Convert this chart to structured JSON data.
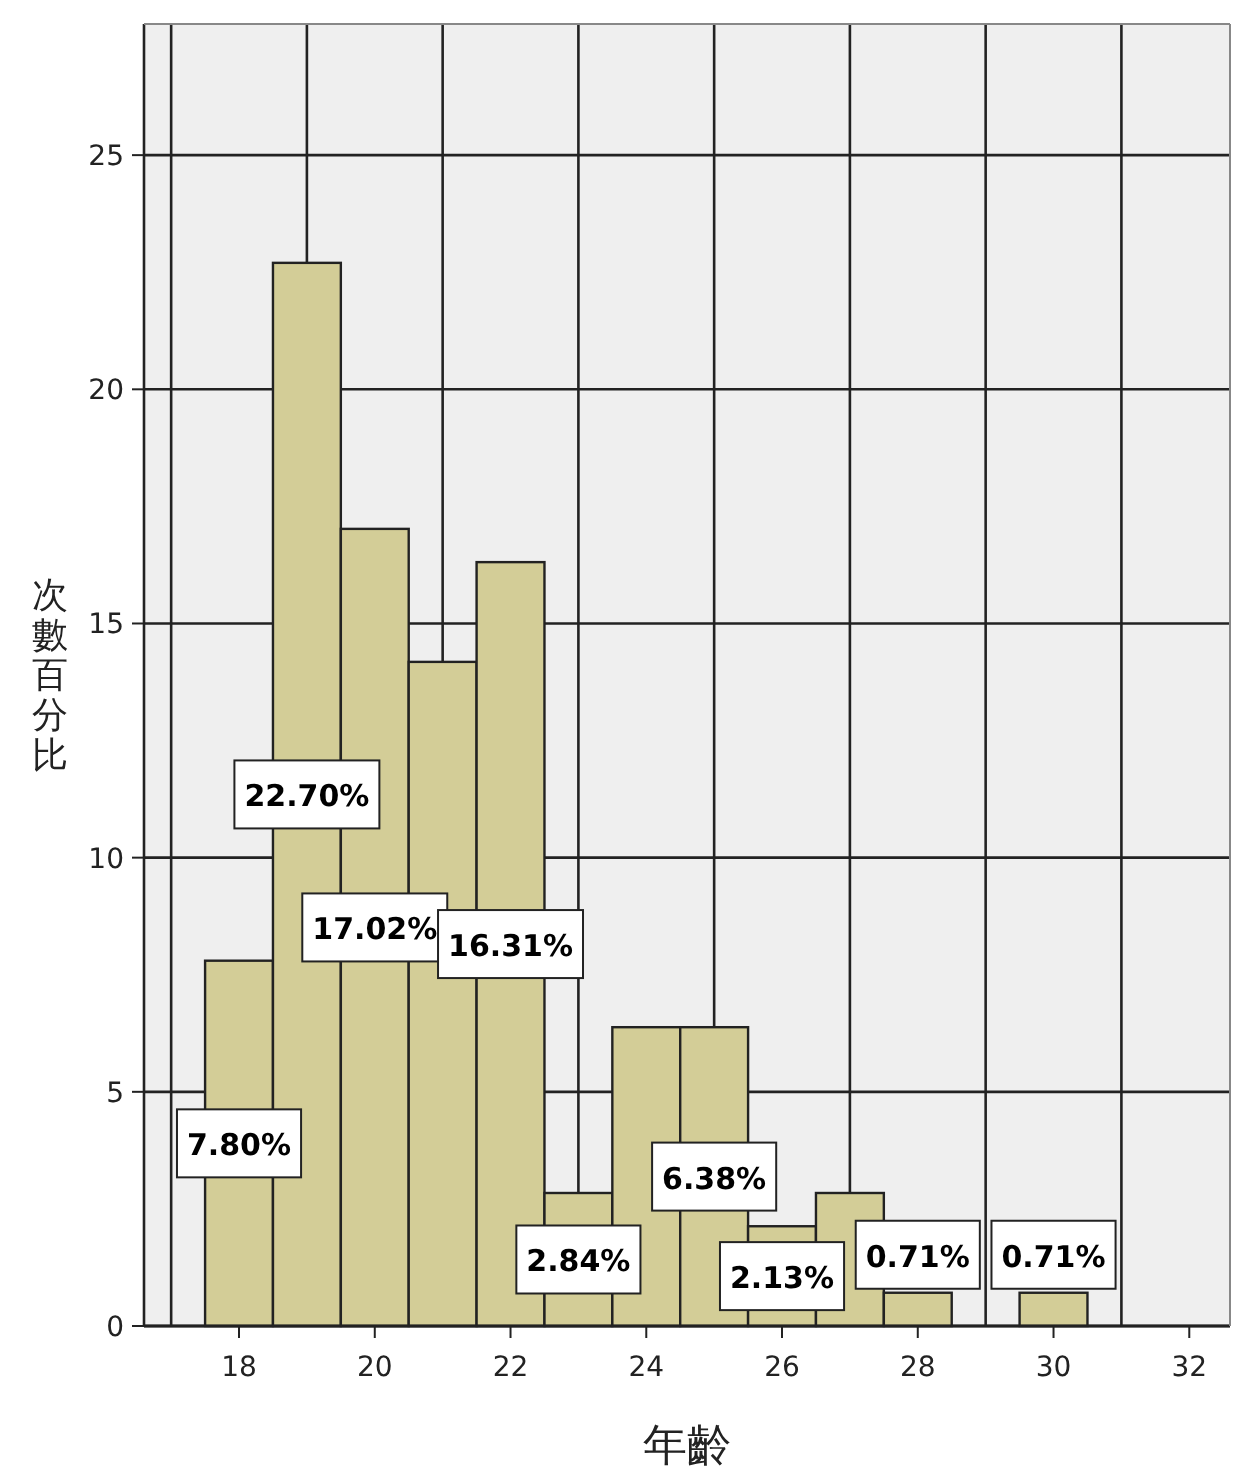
{
  "chart_data": {
    "type": "histogram",
    "xlabel": "年齡",
    "ylabel": "次數百分比",
    "bins": [
      17.5,
      18.5,
      19.5,
      20.5,
      21.5,
      22.5,
      23.5,
      24.5,
      25.5,
      26.5,
      27.5,
      28.5,
      29.5,
      30.5
    ],
    "values": [
      7.8,
      22.7,
      17.02,
      14.18,
      16.31,
      2.84,
      6.38,
      6.38,
      2.13,
      2.84,
      0.71,
      0,
      0.71
    ],
    "value_labels": [
      "7.80%",
      "22.70%",
      "17.02%",
      null,
      "16.31%",
      "2.84%",
      null,
      "6.38%",
      "2.13%",
      null,
      "0.71%",
      null,
      "0.71%"
    ],
    "color": "#d3cd97",
    "xlim": [
      16.6,
      32.6
    ],
    "xticks": [
      18,
      20,
      22,
      24,
      26,
      28,
      30,
      32
    ],
    "ylim": [
      0,
      27.8
    ],
    "yticks": [
      0,
      5,
      10,
      15,
      20,
      25
    ],
    "grid": "y",
    "ref_lines": [
      {
        "axis": "x",
        "value": 17
      },
      {
        "axis": "x",
        "value": 19
      },
      {
        "axis": "x",
        "value": 21
      },
      {
        "axis": "x",
        "value": 23
      },
      {
        "axis": "x",
        "value": 25
      },
      {
        "axis": "x",
        "value": 27
      },
      {
        "axis": "x",
        "value": 29
      },
      {
        "axis": "x",
        "value": 31
      }
    ]
  }
}
